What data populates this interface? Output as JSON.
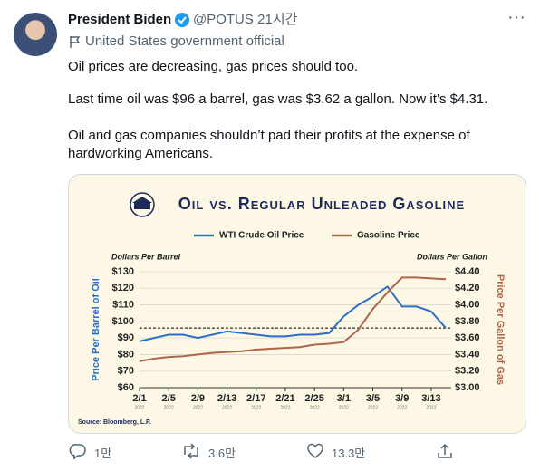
{
  "tweet": {
    "name": "President Biden",
    "handle": "@POTUS",
    "time": "· 21시간",
    "label": "United States government official",
    "paragraphs": [
      "Oil prices are decreasing, gas prices should too.",
      "Last time oil was $96 a barrel, gas was $3.62 a gallon. Now it’s $4.31.",
      "Oil and gas companies shouldn’t pad their profits at the expense of",
      "hardworking Americans."
    ],
    "replies": "1만",
    "retweets": "3.6만",
    "likes": "13.3만"
  },
  "chart_data": {
    "type": "line",
    "title": "Oil vs. Regular Unleaded Gasoline",
    "y_unit_label": "Dollars Per Barrel",
    "y2_unit_label": "Dollars Per Gallon",
    "ylabel": "Price Per Barrel of Oil",
    "y2label": "Price Per Gallon of Gas",
    "source": "Source: Bloomberg, L.P.",
    "x": [
      "2/1",
      "2/3",
      "2/5",
      "2/7",
      "2/9",
      "2/11",
      "2/13",
      "2/15",
      "2/17",
      "2/19",
      "2/21",
      "2/23",
      "2/25",
      "2/27",
      "3/1",
      "3/3",
      "3/5",
      "3/7",
      "3/9",
      "3/11",
      "3/13",
      "3/15"
    ],
    "xticks": [
      "2/1",
      "2/5",
      "2/9",
      "2/13",
      "2/17",
      "2/21",
      "2/25",
      "3/1",
      "3/5",
      "3/9",
      "3/13"
    ],
    "xtick_sublabel": "2022",
    "series": [
      {
        "name": "WTI Crude Oil Price",
        "color": "#2b6fc7",
        "values": [
          88,
          90,
          92,
          92,
          90,
          92,
          94,
          93,
          92,
          91,
          91,
          92,
          92,
          93,
          103,
          110,
          115,
          121,
          109,
          109,
          106,
          96
        ]
      },
      {
        "name": "Gasoline Price",
        "color": "#b0644a",
        "axis": "y2",
        "values": [
          3.32,
          3.35,
          3.37,
          3.38,
          3.4,
          3.42,
          3.43,
          3.44,
          3.46,
          3.47,
          3.48,
          3.49,
          3.52,
          3.53,
          3.55,
          3.7,
          3.95,
          4.15,
          4.33,
          4.33,
          4.32,
          4.31
        ]
      }
    ],
    "reference_line": 96,
    "ylim": [
      60,
      130
    ],
    "yticks": [
      {
        "value": 60,
        "label": "$60"
      },
      {
        "value": 70,
        "label": "$70"
      },
      {
        "value": 80,
        "label": "$80"
      },
      {
        "value": 90,
        "label": "$90"
      },
      {
        "value": 100,
        "label": "$100"
      },
      {
        "value": 110,
        "label": "$110"
      },
      {
        "value": 120,
        "label": "$120"
      },
      {
        "value": 130,
        "label": "$130"
      }
    ],
    "y2lim": [
      3.0,
      4.4
    ],
    "y2ticks": [
      {
        "value": 3.0,
        "label": "$3.00"
      },
      {
        "value": 3.2,
        "label": "$3.20"
      },
      {
        "value": 3.4,
        "label": "$3.40"
      },
      {
        "value": 3.6,
        "label": "$3.60"
      },
      {
        "value": 3.8,
        "label": "$3.80"
      },
      {
        "value": 4.0,
        "label": "$4.00"
      },
      {
        "value": 4.2,
        "label": "$4.20"
      },
      {
        "value": 4.4,
        "label": "$4.40"
      }
    ],
    "grid": true
  }
}
